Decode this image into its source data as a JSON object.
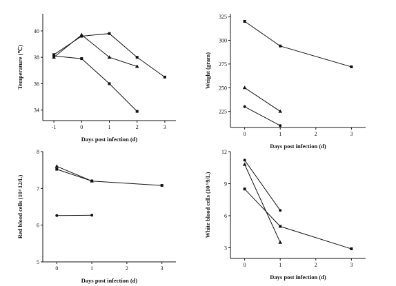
{
  "chart_data": [
    {
      "type": "line",
      "xlabel": "Days post infection (d)",
      "ylabel": "Temperature (℃)",
      "xlim": [
        -1.4,
        3.4
      ],
      "ylim": [
        33.2,
        41.3
      ],
      "xticks": [
        -1,
        0,
        1,
        2,
        3
      ],
      "xtick_labels": [
        "-1",
        "0",
        "1",
        "2",
        "3"
      ],
      "yticks": [
        34,
        36,
        38,
        40
      ],
      "ytick_labels": [
        "34",
        "36",
        "38",
        "40"
      ],
      "series": [
        {
          "marker": "square",
          "points": [
            [
              -1,
              38.1
            ],
            [
              0,
              37.9
            ],
            [
              1,
              36.0
            ],
            [
              2,
              33.9
            ]
          ]
        },
        {
          "marker": "square",
          "points": [
            [
              -1,
              38.2
            ],
            [
              0,
              39.6
            ],
            [
              1,
              39.8
            ],
            [
              2,
              38.0
            ],
            [
              3,
              36.5
            ]
          ]
        },
        {
          "marker": "triangle",
          "points": [
            [
              -1,
              38.0
            ],
            [
              0,
              39.7
            ],
            [
              1,
              38.0
            ],
            [
              2,
              37.3
            ]
          ]
        }
      ]
    },
    {
      "type": "line",
      "xlabel": "Days post infection (d)",
      "ylabel": "Weight (gram)",
      "xlim": [
        -0.4,
        3.4
      ],
      "ylim": [
        208,
        328
      ],
      "xticks": [
        0,
        1,
        2,
        3
      ],
      "xtick_labels": [
        "0",
        "1",
        "2",
        "3"
      ],
      "yticks": [
        225,
        250,
        275,
        300,
        325
      ],
      "ytick_labels": [
        "225",
        "250",
        "275",
        "300",
        "325"
      ],
      "series": [
        {
          "marker": "square",
          "points": [
            [
              0,
              320
            ],
            [
              1,
              294
            ],
            [
              3,
              272
            ]
          ]
        },
        {
          "marker": "triangle",
          "points": [
            [
              0,
              250
            ],
            [
              1,
              225
            ]
          ]
        },
        {
          "marker": "circle",
          "points": [
            [
              0,
              230
            ],
            [
              1,
              210
            ]
          ]
        }
      ]
    },
    {
      "type": "line",
      "xlabel": "Days post infection (d)",
      "ylabel": "Red blood cells (10^12/L)",
      "xlim": [
        -0.4,
        3.4
      ],
      "ylim": [
        5,
        8
      ],
      "xticks": [
        0,
        1,
        2,
        3
      ],
      "xtick_labels": [
        "0",
        "1",
        "2",
        "3"
      ],
      "yticks": [
        5,
        6,
        7,
        8
      ],
      "ytick_labels": [
        "5",
        "6",
        "7",
        "8"
      ],
      "series": [
        {
          "marker": "triangle",
          "points": [
            [
              0,
              7.6
            ],
            [
              1,
              7.2
            ]
          ]
        },
        {
          "marker": "square",
          "points": [
            [
              0,
              7.52
            ],
            [
              1,
              7.2
            ],
            [
              3,
              7.08
            ]
          ]
        },
        {
          "marker": "circle",
          "points": [
            [
              0,
              6.26
            ],
            [
              1,
              6.27
            ]
          ]
        }
      ]
    },
    {
      "type": "line",
      "xlabel": "Days post infection (d)",
      "ylabel": "White blood cells (10^9/L)",
      "xlim": [
        -0.4,
        3.4
      ],
      "ylim": [
        2,
        12
      ],
      "xticks": [
        0,
        1,
        2,
        3
      ],
      "xtick_labels": [
        "0",
        "1",
        "2",
        "3"
      ],
      "yticks": [
        3,
        6,
        9,
        12
      ],
      "ytick_labels": [
        "3",
        "6",
        "9",
        "12"
      ],
      "series": [
        {
          "marker": "circle",
          "points": [
            [
              0,
              11.2
            ],
            [
              1,
              6.5
            ]
          ]
        },
        {
          "marker": "triangle",
          "points": [
            [
              0,
              10.8
            ],
            [
              1,
              3.5
            ]
          ]
        },
        {
          "marker": "square",
          "points": [
            [
              0,
              8.5
            ],
            [
              1,
              5.0
            ],
            [
              3,
              2.9
            ]
          ]
        }
      ]
    }
  ]
}
